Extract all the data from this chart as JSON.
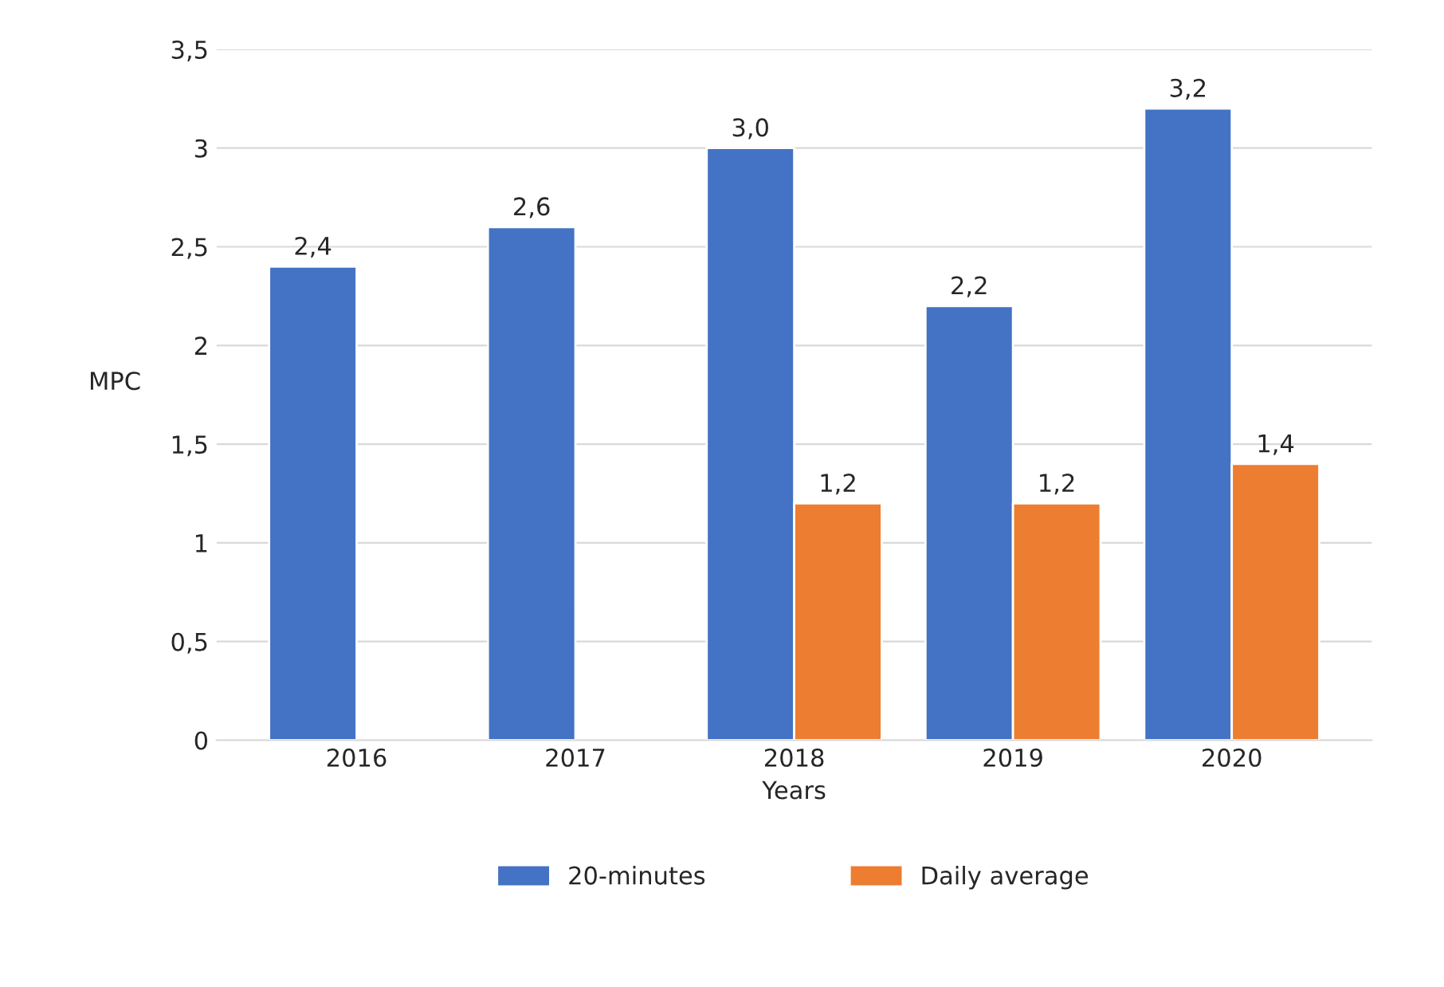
{
  "chart_data": {
    "type": "bar",
    "xlabel": "Years",
    "ylabel": "MPC",
    "categories": [
      "2016",
      "2017",
      "2018",
      "2019",
      "2020"
    ],
    "series": [
      {
        "name": "20-minutes",
        "color": "#4472c4",
        "values": [
          2.4,
          2.6,
          3.0,
          2.2,
          3.2
        ],
        "value_labels": [
          "2,4",
          "2,6",
          "3,0",
          "2,2",
          "3,2"
        ]
      },
      {
        "name": "Daily average",
        "color": "#ed7d31",
        "values": [
          null,
          null,
          1.2,
          1.2,
          1.4
        ],
        "value_labels": [
          null,
          null,
          "1,2",
          "1,2",
          "1,4"
        ]
      }
    ],
    "ylim": [
      0,
      3.5
    ],
    "yticks": [
      0,
      {
        "value": 0.5,
        "label": "0,5"
      },
      1,
      {
        "value": 1.5,
        "label": "1,5"
      },
      2,
      {
        "value": 2.5,
        "label": "2,5"
      },
      3,
      {
        "value": 3.5,
        "label": "3,5"
      }
    ],
    "grid": "y",
    "legend": "bottom"
  }
}
